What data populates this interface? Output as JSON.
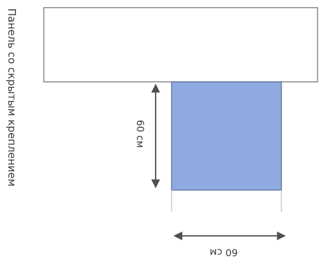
{
  "panel": {
    "caption": "Панель со скрытым креплением"
  },
  "dimensions": {
    "height_label": "60 см",
    "width_label": "60 см"
  },
  "colors": {
    "panel_fill": "#ffffff",
    "panel_stroke": "#6b6b6b",
    "tile_fill": "#8eaae0",
    "tile_stroke": "#5b6f9a",
    "arrow": "#4f4f4f",
    "extension_line": "#a9c1dc"
  }
}
